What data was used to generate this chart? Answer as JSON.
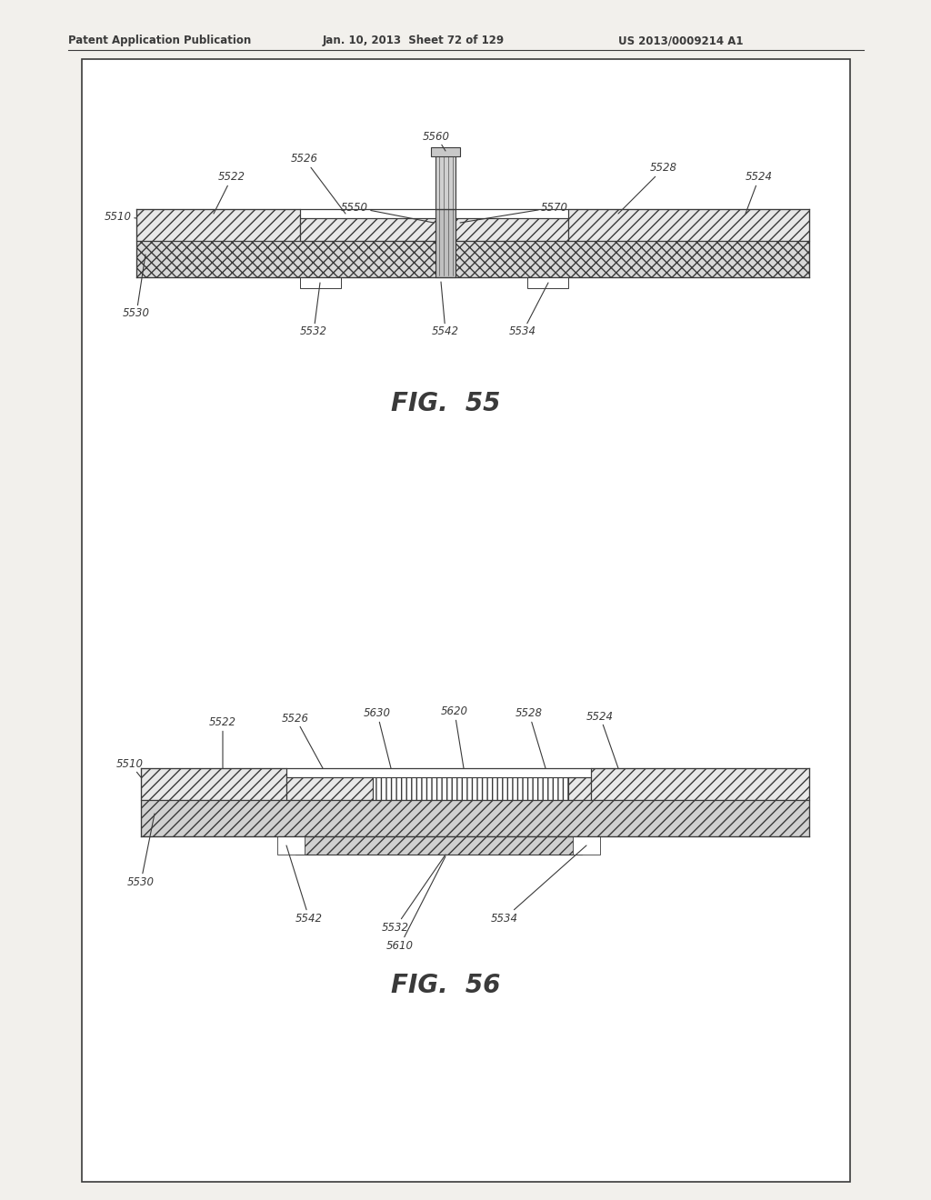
{
  "bg_color": "#f2f0ec",
  "page_bg": "#ffffff",
  "header_text": "Patent Application Publication",
  "header_date": "Jan. 10, 2013  Sheet 72 of 129",
  "header_patent": "US 2013/0009214 A1",
  "fig55_title": "FIG.  55",
  "fig56_title": "FIG.  56",
  "line_color": "#3a3a3a",
  "hatch_lw": 0.5
}
